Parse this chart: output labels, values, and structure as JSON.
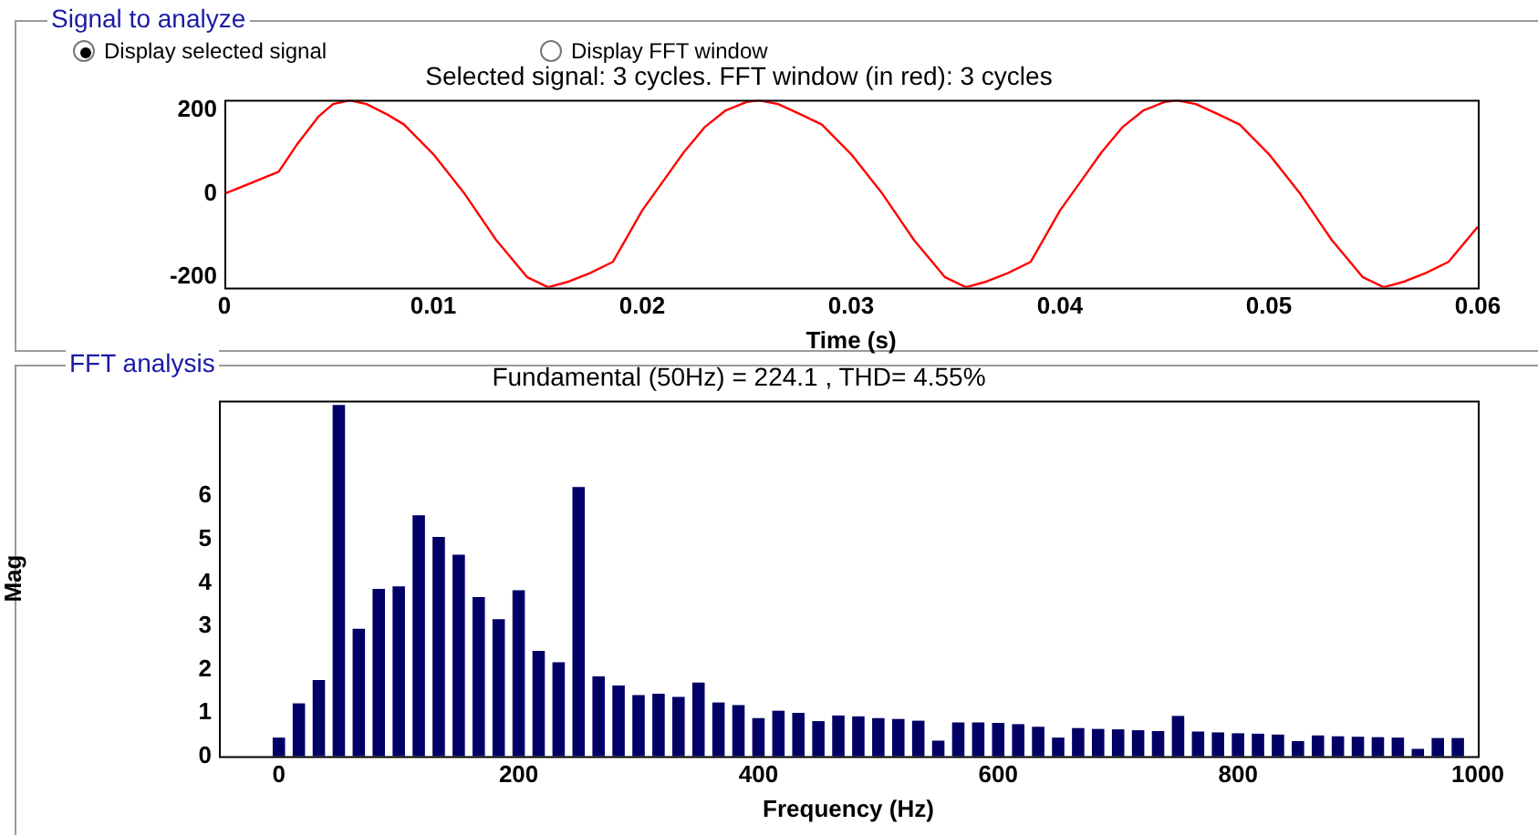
{
  "chart_data": [
    {
      "type": "line",
      "title": "Selected signal: 3 cycles. FFT window (in red): 3 cycles",
      "xlabel": "Time (s)",
      "annotations": [
        "Signal to analyze",
        "Display selected signal",
        "Display FFT window"
      ],
      "xlim": [
        0,
        0.06
      ],
      "xticks": [
        0,
        0.01,
        0.02,
        0.03,
        0.04,
        0.05,
        0.06
      ],
      "ylim": [
        -225,
        225
      ],
      "yticks": [
        -200,
        0,
        200
      ],
      "marker": "none",
      "legend": false,
      "series": [
        {
          "color": "#ff0000",
          "x": [
            0,
            0.0026,
            0.0035,
            0.0045,
            0.0052,
            0.006,
            0.0068,
            0.0078,
            0.0086,
            0.01,
            0.0115,
            0.013,
            0.0145,
            0.0155,
            0.0165,
            0.0175,
            0.0186,
            0.02,
            0.021,
            0.022,
            0.023,
            0.024,
            0.025,
            0.0256,
            0.0265,
            0.0276,
            0.0286,
            0.03,
            0.0315,
            0.033,
            0.0345,
            0.0355,
            0.0365,
            0.0375,
            0.0386,
            0.04,
            0.041,
            0.042,
            0.043,
            0.044,
            0.045,
            0.0456,
            0.0465,
            0.0476,
            0.0486,
            0.05,
            0.0515,
            0.053,
            0.0545,
            0.0555,
            0.0565,
            0.0575,
            0.0586,
            0.06
          ],
          "values": [
            0,
            53,
            120,
            185,
            215,
            224,
            215,
            190,
            166,
            95,
            0,
            -110,
            -200,
            -224,
            -210,
            -190,
            -163,
            -40,
            30,
            100,
            160,
            200,
            220,
            224,
            215,
            190,
            166,
            95,
            0,
            -110,
            -200,
            -224,
            -210,
            -190,
            -163,
            -40,
            30,
            100,
            160,
            200,
            220,
            224,
            215,
            190,
            166,
            95,
            0,
            -110,
            -200,
            -224,
            -210,
            -190,
            -163,
            -79
          ]
        }
      ]
    },
    {
      "type": "bar",
      "title": "Fundamental (50Hz) = 224.1 , THD= 4.55%",
      "xlabel": "Frequency (Hz)",
      "ylabel": "Mag",
      "annotations": [
        "FFT analysis"
      ],
      "xlim": [
        -50,
        1000
      ],
      "xticks": [
        0,
        200,
        400,
        600,
        800,
        1000
      ],
      "ylim": [
        0,
        8.2
      ],
      "yticks": [
        0,
        1,
        2,
        3,
        4,
        5,
        6
      ],
      "legend": false,
      "series": [
        {
          "color": "#000066",
          "x": [
            0,
            16.67,
            33.33,
            50,
            66.67,
            83.33,
            100,
            116.67,
            133.33,
            150,
            166.67,
            183.33,
            200,
            216.67,
            233.33,
            250,
            266.67,
            283.33,
            300,
            316.67,
            333.33,
            350,
            366.67,
            383.33,
            400,
            416.67,
            433.33,
            450,
            466.67,
            483.33,
            500,
            516.67,
            533.33,
            550,
            566.67,
            583.33,
            600,
            616.67,
            633.33,
            650,
            666.67,
            683.33,
            700,
            716.67,
            733.33,
            750,
            766.67,
            783.33,
            800,
            816.67,
            833.33,
            850,
            866.67,
            883.33,
            900,
            916.67,
            933.33,
            950,
            966.67,
            983.33
          ],
          "values": [
            0.43,
            1.22,
            1.76,
            8.1,
            2.94,
            3.86,
            3.92,
            5.56,
            5.06,
            4.65,
            3.67,
            3.16,
            3.83,
            2.43,
            2.17,
            6.21,
            1.84,
            1.63,
            1.41,
            1.44,
            1.37,
            1.7,
            1.24,
            1.18,
            0.88,
            1.05,
            1.0,
            0.81,
            0.94,
            0.92,
            0.88,
            0.86,
            0.82,
            0.36,
            0.78,
            0.78,
            0.77,
            0.74,
            0.68,
            0.43,
            0.65,
            0.63,
            0.62,
            0.6,
            0.58,
            0.93,
            0.57,
            0.55,
            0.53,
            0.52,
            0.5,
            0.35,
            0.48,
            0.46,
            0.45,
            0.44,
            0.43,
            0.17,
            0.42,
            0.42
          ]
        }
      ]
    }
  ]
}
